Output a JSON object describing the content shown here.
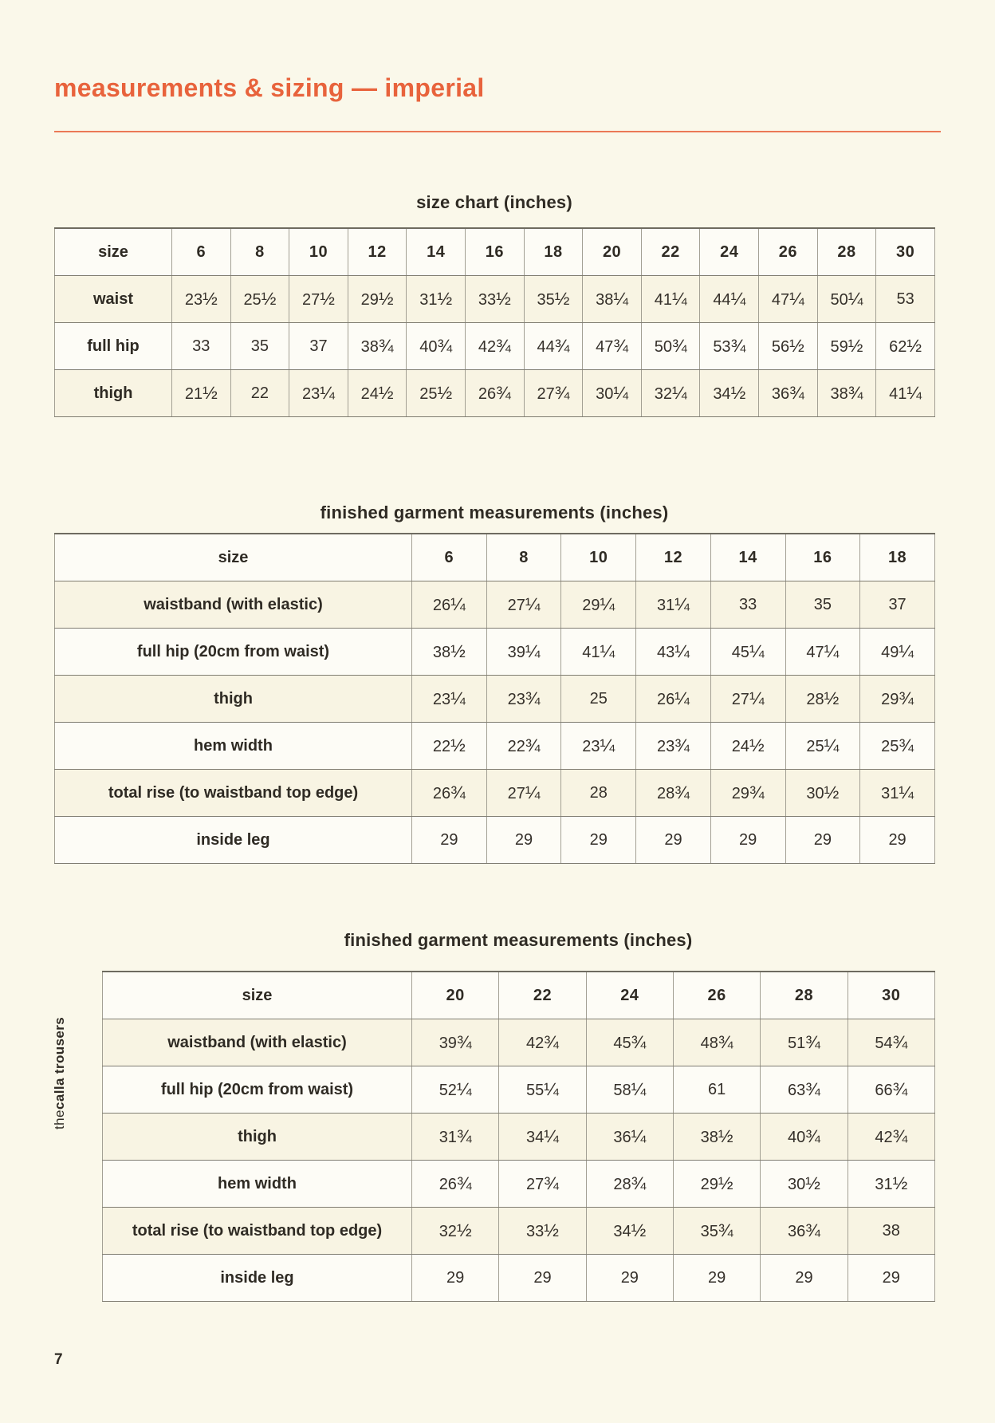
{
  "page": {
    "title": "measurements & sizing — imperial",
    "page_number": "7",
    "side_label_prefix": "the ",
    "side_label_bold": "calla trousers",
    "accent_color": "#e8633c"
  },
  "size_chart": {
    "title": "size chart (inches)",
    "col_header": "size",
    "sizes": [
      "6",
      "8",
      "10",
      "12",
      "14",
      "16",
      "18",
      "20",
      "22",
      "24",
      "26",
      "28",
      "30"
    ],
    "rows": [
      {
        "label": "waist",
        "values": [
          "23½",
          "25½",
          "27½",
          "29½",
          "31½",
          "33½",
          "35½",
          "38¼",
          "41¼",
          "44¼",
          "47¼",
          "50¼",
          "53"
        ]
      },
      {
        "label": "full hip",
        "values": [
          "33",
          "35",
          "37",
          "38¾",
          "40¾",
          "42¾",
          "44¾",
          "47¾",
          "50¾",
          "53¾",
          "56½",
          "59½",
          "62½"
        ]
      },
      {
        "label": "thigh",
        "values": [
          "21½",
          "22",
          "23¼",
          "24½",
          "25½",
          "26¾",
          "27¾",
          "30¼",
          "32¼",
          "34½",
          "36¾",
          "38¾",
          "41¼"
        ]
      }
    ]
  },
  "finished_1": {
    "title": "finished garment measurements (inches)",
    "col_header": "size",
    "sizes": [
      "6",
      "8",
      "10",
      "12",
      "14",
      "16",
      "18"
    ],
    "rows": [
      {
        "label": "waistband (with elastic)",
        "values": [
          "26¼",
          "27¼",
          "29¼",
          "31¼",
          "33",
          "35",
          "37"
        ]
      },
      {
        "label": "full hip (20cm from waist)",
        "values": [
          "38½",
          "39¼",
          "41¼",
          "43¼",
          "45¼",
          "47¼",
          "49¼"
        ]
      },
      {
        "label": "thigh",
        "values": [
          "23¼",
          "23¾",
          "25",
          "26¼",
          "27¼",
          "28½",
          "29¾"
        ]
      },
      {
        "label": "hem width",
        "values": [
          "22½",
          "22¾",
          "23¼",
          "23¾",
          "24½",
          "25¼",
          "25¾"
        ]
      },
      {
        "label": "total rise (to waistband top edge)",
        "values": [
          "26¾",
          "27¼",
          "28",
          "28¾",
          "29¾",
          "30½",
          "31¼"
        ]
      },
      {
        "label": "inside leg",
        "values": [
          "29",
          "29",
          "29",
          "29",
          "29",
          "29",
          "29"
        ]
      }
    ]
  },
  "finished_2": {
    "title": "finished garment measurements (inches)",
    "col_header": "size",
    "sizes": [
      "20",
      "22",
      "24",
      "26",
      "28",
      "30"
    ],
    "rows": [
      {
        "label": "waistband (with elastic)",
        "values": [
          "39¾",
          "42¾",
          "45¾",
          "48¾",
          "51¾",
          "54¾"
        ]
      },
      {
        "label": "full hip (20cm from waist)",
        "values": [
          "52¼",
          "55¼",
          "58¼",
          "61",
          "63¾",
          "66¾"
        ]
      },
      {
        "label": "thigh",
        "values": [
          "31¾",
          "34¼",
          "36¼",
          "38½",
          "40¾",
          "42¾"
        ]
      },
      {
        "label": "hem width",
        "values": [
          "26¾",
          "27¾",
          "28¾",
          "29½",
          "30½",
          "31½"
        ]
      },
      {
        "label": "total rise (to waistband top edge)",
        "values": [
          "32½",
          "33½",
          "34½",
          "35¾",
          "36¾",
          "38"
        ]
      },
      {
        "label": "inside leg",
        "values": [
          "29",
          "29",
          "29",
          "29",
          "29",
          "29"
        ]
      }
    ]
  }
}
